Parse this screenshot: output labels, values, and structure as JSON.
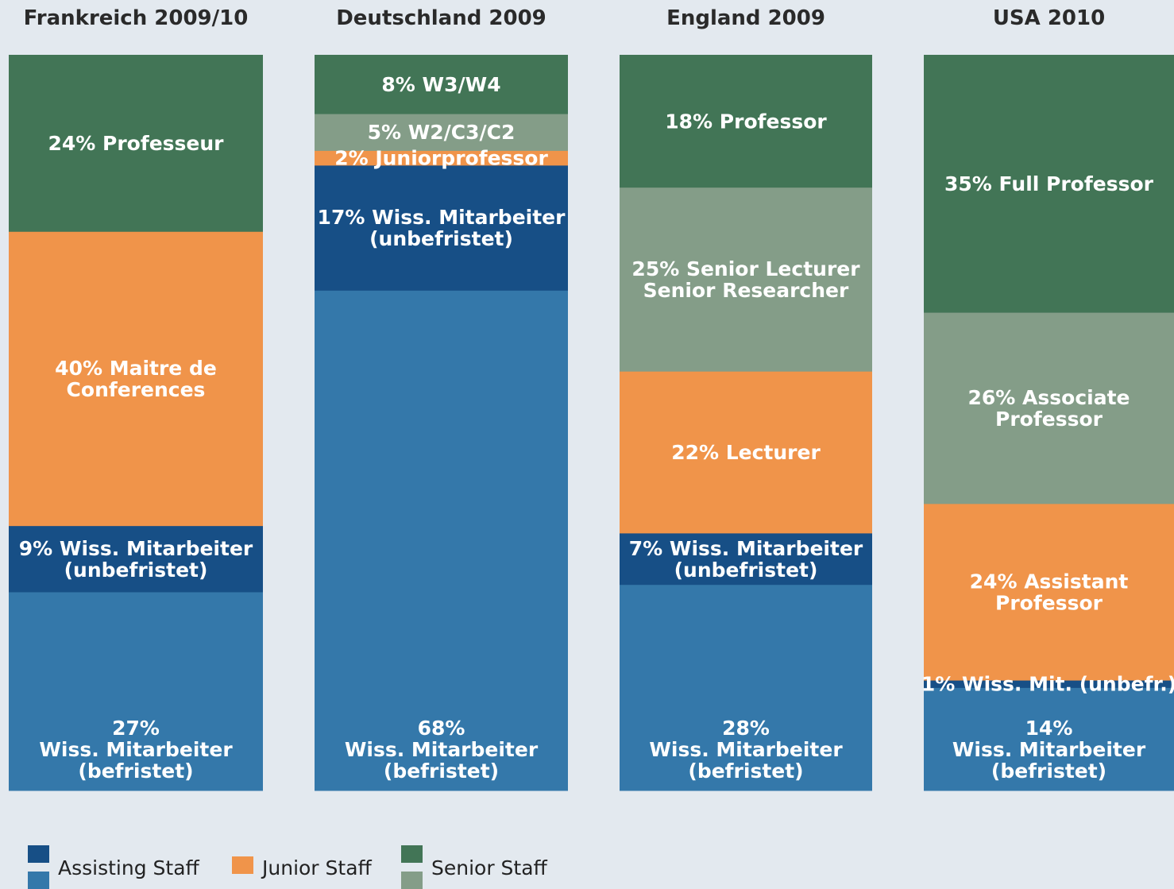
{
  "chart_data": {
    "type": "bar",
    "stacked": true,
    "orientation": "vertical",
    "total_percent": 100,
    "colors": {
      "assisting_befristet": "#3478aa",
      "assisting_unbefristet": "#174f86",
      "junior": "#f0944a",
      "senior_light": "#849d88",
      "senior_dark": "#427556"
    },
    "categories": [
      "Frankreich 2009/10",
      "Deutschland 2009",
      "England 2009",
      "USA 2010"
    ],
    "columns": [
      {
        "title": "Frankreich 2009/10",
        "segments": [
          {
            "value": 27,
            "color_key": "assisting_befristet",
            "label": [
              "27%",
              "Wiss. Mitarbeiter",
              "(befristet)"
            ]
          },
          {
            "value": 9,
            "color_key": "assisting_unbefristet",
            "label": [
              "9% Wiss. Mitarbeiter",
              "(unbefristet)"
            ]
          },
          {
            "value": 40,
            "color_key": "junior",
            "label": [
              "40% Maitre de",
              "Conferences"
            ]
          },
          {
            "value": 24,
            "color_key": "senior_dark",
            "label": [
              "24% Professeur"
            ]
          }
        ]
      },
      {
        "title": "Deutschland 2009",
        "segments": [
          {
            "value": 68,
            "color_key": "assisting_befristet",
            "label": [
              "68%",
              "Wiss. Mitarbeiter",
              "(befristet)"
            ]
          },
          {
            "value": 17,
            "color_key": "assisting_unbefristet",
            "label": [
              "17% Wiss. Mitarbeiter",
              "(unbefristet)"
            ]
          },
          {
            "value": 2,
            "color_key": "junior",
            "label": [
              "2% Juniorprofessor"
            ]
          },
          {
            "value": 5,
            "color_key": "senior_light",
            "label": [
              "5% W2/C3/C2"
            ]
          },
          {
            "value": 8,
            "color_key": "senior_dark",
            "label": [
              "8% W3/W4"
            ]
          }
        ]
      },
      {
        "title": "England 2009",
        "segments": [
          {
            "value": 28,
            "color_key": "assisting_befristet",
            "label": [
              "28%",
              "Wiss. Mitarbeiter",
              "(befristet)"
            ]
          },
          {
            "value": 7,
            "color_key": "assisting_unbefristet",
            "label": [
              "7% Wiss. Mitarbeiter",
              "(unbefristet)"
            ]
          },
          {
            "value": 22,
            "color_key": "junior",
            "label": [
              "22% Lecturer"
            ]
          },
          {
            "value": 25,
            "color_key": "senior_light",
            "label": [
              "25% Senior Lecturer",
              "Senior Researcher"
            ]
          },
          {
            "value": 18,
            "color_key": "senior_dark",
            "label": [
              "18% Professor"
            ]
          }
        ]
      },
      {
        "title": "USA 2010",
        "segments": [
          {
            "value": 14,
            "color_key": "assisting_befristet",
            "label": [
              "14%",
              "Wiss. Mitarbeiter",
              "(befristet)"
            ]
          },
          {
            "value": 1,
            "color_key": "assisting_unbefristet",
            "label": [
              "1% Wiss. Mit. (unbefr.)"
            ]
          },
          {
            "value": 24,
            "color_key": "junior",
            "label": [
              "24% Assistant",
              "Professor"
            ]
          },
          {
            "value": 26,
            "color_key": "senior_light",
            "label": [
              "26% Associate",
              "Professor"
            ]
          },
          {
            "value": 35,
            "color_key": "senior_dark",
            "label": [
              "35% Full Professor"
            ]
          }
        ]
      }
    ],
    "legend": [
      {
        "label": "Assisting Staff",
        "color_keys": [
          "assisting_unbefristet",
          "assisting_befristet"
        ]
      },
      {
        "label": "Junior Staff",
        "color_keys": [
          "junior"
        ]
      },
      {
        "label": "Senior Staff",
        "color_keys": [
          "senior_dark",
          "senior_light"
        ]
      }
    ]
  }
}
